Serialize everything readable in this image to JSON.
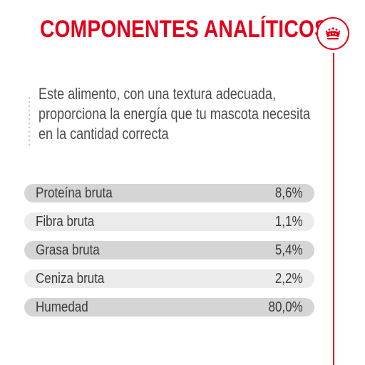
{
  "header": {
    "title": "COMPONENTES ANALÍTICOS",
    "badge_icon": "crown-icon",
    "accent_color": "#e2001a"
  },
  "description": {
    "lines": [
      "Este alimento, con una textura adecuada,",
      "proporciona la energía que tu mascota necesita",
      "en la cantidad correcta"
    ]
  },
  "components": [
    {
      "label": "Proteína bruta",
      "value": "8,6%"
    },
    {
      "label": "Fibra bruta",
      "value": "1,1%"
    },
    {
      "label": "Grasa bruta",
      "value": "5,4%"
    },
    {
      "label": "Ceniza bruta",
      "value": "2,2%"
    },
    {
      "label": "Humedad",
      "value": "80,0%"
    }
  ]
}
